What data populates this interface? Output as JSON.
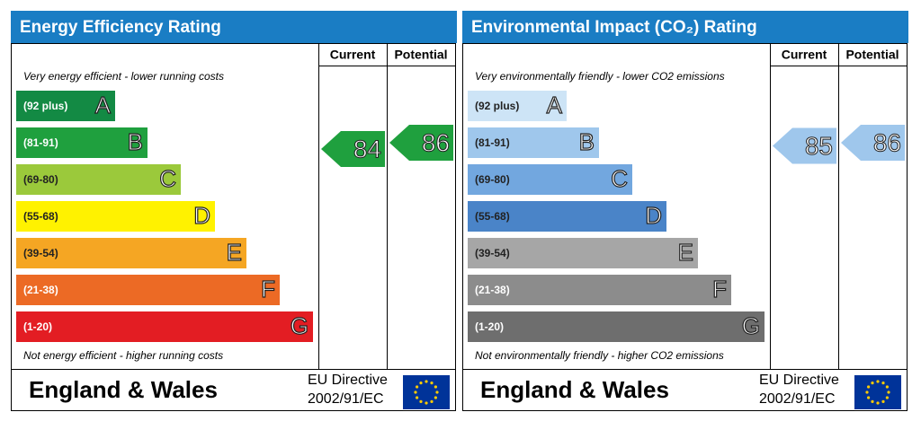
{
  "panels": [
    {
      "title": "Energy Efficiency Rating",
      "columns": [
        "Current",
        "Potential"
      ],
      "top_note": "Very energy efficient - lower running costs",
      "bottom_note": "Not energy efficient - higher running costs",
      "bands": [
        {
          "range": "(92 plus)",
          "letter": "A"
        },
        {
          "range": "(81-91)",
          "letter": "B"
        },
        {
          "range": "(69-80)",
          "letter": "C"
        },
        {
          "range": "(55-68)",
          "letter": "D"
        },
        {
          "range": "(39-54)",
          "letter": "E"
        },
        {
          "range": "(21-38)",
          "letter": "F"
        },
        {
          "range": "(1-20)",
          "letter": "G"
        }
      ],
      "current": 84,
      "potential": 86,
      "region": "England & Wales",
      "directive": [
        "EU Directive",
        "2002/91/EC"
      ]
    },
    {
      "title": "Environmental Impact (CO₂) Rating",
      "columns": [
        "Current",
        "Potential"
      ],
      "top_note": "Very environmentally friendly - lower CO2 emissions",
      "bottom_note": "Not environmentally friendly - higher CO2 emissions",
      "bands": [
        {
          "range": "(92 plus)",
          "letter": "A"
        },
        {
          "range": "(81-91)",
          "letter": "B"
        },
        {
          "range": "(69-80)",
          "letter": "C"
        },
        {
          "range": "(55-68)",
          "letter": "D"
        },
        {
          "range": "(39-54)",
          "letter": "E"
        },
        {
          "range": "(21-38)",
          "letter": "F"
        },
        {
          "range": "(1-20)",
          "letter": "G"
        }
      ],
      "current": 85,
      "potential": 86,
      "region": "England & Wales",
      "directive": [
        "EU Directive",
        "2002/91/EC"
      ]
    }
  ]
}
